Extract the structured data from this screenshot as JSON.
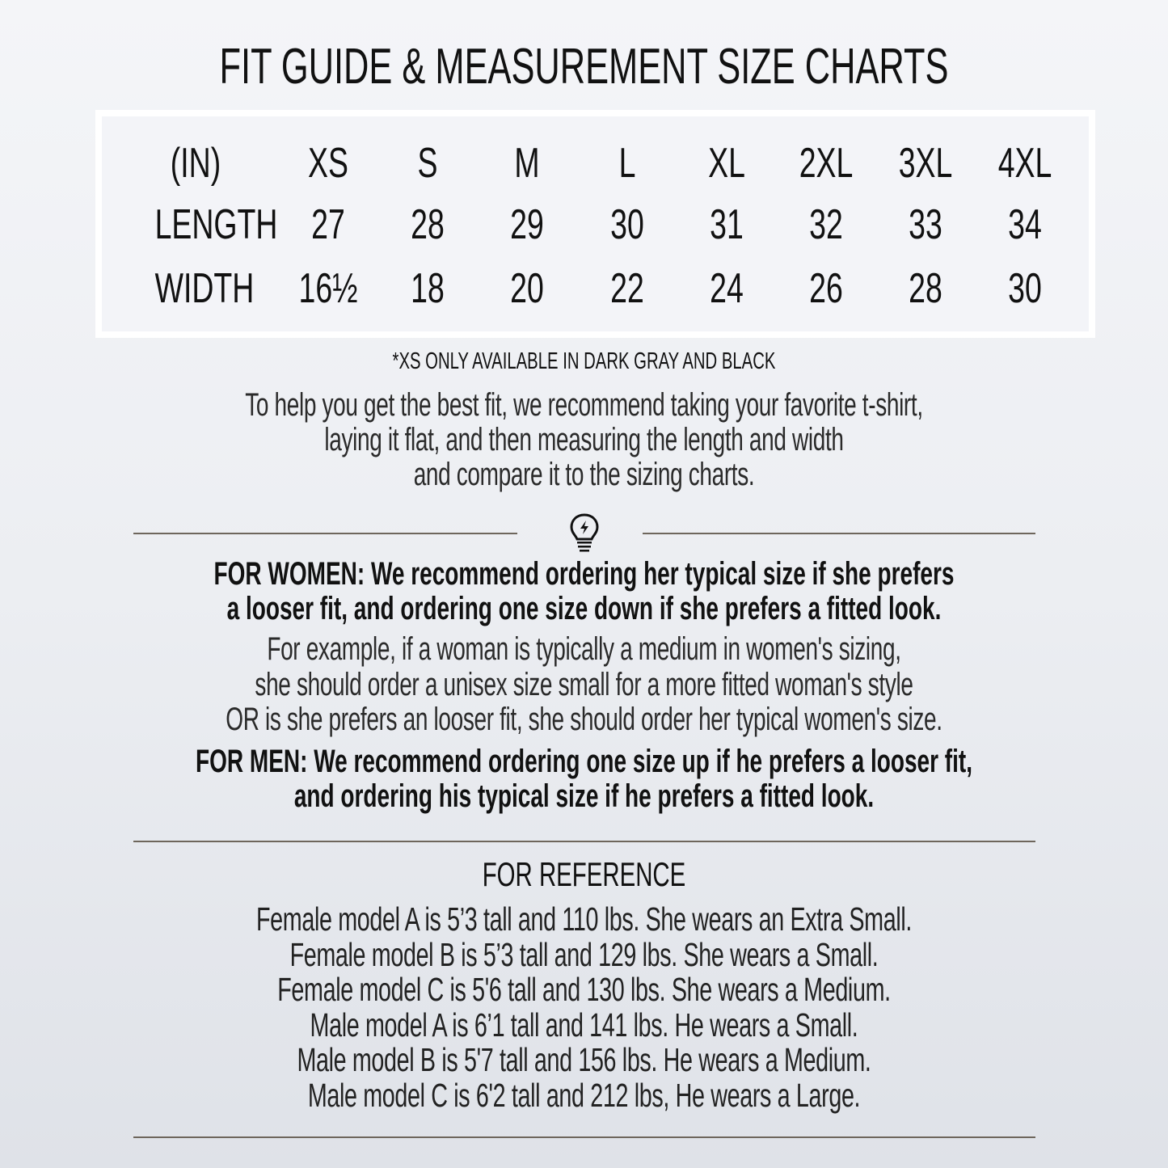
{
  "title": "FIT GUIDE & MEASUREMENT SIZE CHARTS",
  "size_table": {
    "header": [
      "(IN)",
      "XS",
      "S",
      "M",
      "L",
      "XL",
      "2XL",
      "3XL",
      "4XL"
    ],
    "rows": [
      [
        "LENGTH",
        "27",
        "28",
        "29",
        "30",
        "31",
        "32",
        "33",
        "34"
      ],
      [
        "WIDTH",
        "16½",
        "18",
        "20",
        "22",
        "24",
        "26",
        "28",
        "30"
      ]
    ]
  },
  "availability_note": "*XS ONLY AVAILABLE IN DARK GRAY AND BLACK",
  "intro": [
    "To help you get the best fit, we recommend taking your favorite t-shirt,",
    "laying it flat, and then measuring the length and width",
    "and compare it to the sizing charts."
  ],
  "divider_icon": "lightbulb-icon",
  "women": {
    "recommendation": [
      "FOR WOMEN: We recommend ordering her typical size if she prefers",
      "a looser fit, and ordering one size down if she prefers a fitted look."
    ],
    "example": [
      "For example, if a woman is typically a medium in women's sizing,",
      "she should order a unisex size small for a more fitted woman's style",
      "OR is she prefers an looser fit, she should order her typical women's size."
    ]
  },
  "men": {
    "recommendation": [
      "FOR MEN: We recommend ordering one size up if he prefers a looser fit,",
      "and ordering his typical size if he prefers a fitted look."
    ]
  },
  "reference": {
    "heading": "FOR REFERENCE",
    "lines": [
      "Female model A is 5’3 tall and 110 lbs. She wears an Extra Small.",
      "Female model B is 5’3 tall and 129 lbs. She wears a Small.",
      "Female model C is 5'6 tall and 130 lbs. She wears a Medium.",
      "Male model A is 6’1 tall and 141 lbs. He wears a Small.",
      "Male model B is 5'7 tall and 156 lbs. He wears a Medium.",
      "Male model C is 6'2 tall and 212 lbs, He wears a Large."
    ]
  },
  "colors": {
    "rule": "#6e665c",
    "text": "#111111",
    "frame": "#ffffff"
  }
}
